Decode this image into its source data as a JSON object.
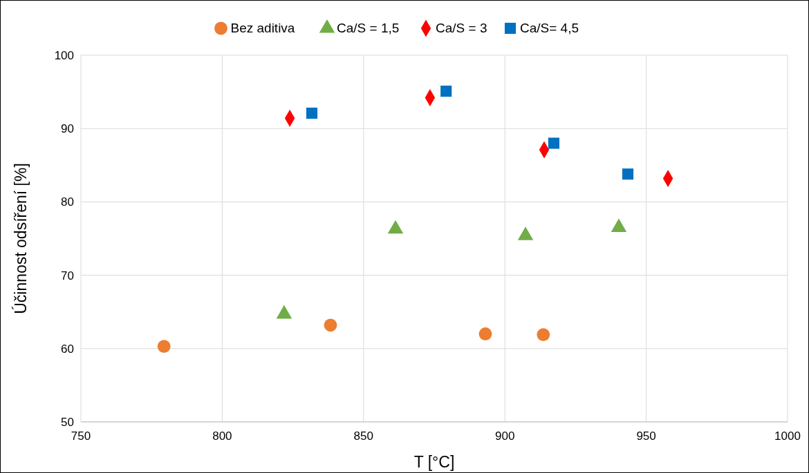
{
  "chart_data": {
    "type": "scatter",
    "xlabel": "T [°C]",
    "ylabel": "Účinnost odsíření [%]",
    "xlim": [
      750,
      1000
    ],
    "xticks": [
      750,
      800,
      850,
      900,
      950,
      1000
    ],
    "ylim": [
      50,
      100
    ],
    "yticks": [
      50,
      60,
      70,
      80,
      90,
      100
    ],
    "grid": true,
    "legend": "top",
    "series": [
      {
        "name": "Bez aditiva",
        "color": "#ed7d31",
        "marker": "circle",
        "x": [
          779.4,
          838.3,
          893.1,
          913.6
        ],
        "values": [
          60.3,
          63.2,
          62.0,
          61.9
        ]
      },
      {
        "name": "Ca/S = 1,5",
        "color": "#70ad47",
        "marker": "triangle",
        "x": [
          821.9,
          861.3,
          907.3,
          940.3
        ],
        "values": [
          64.7,
          76.3,
          75.4,
          76.5
        ]
      },
      {
        "name": "Ca/S = 3",
        "color": "#ff0000",
        "marker": "diamond",
        "x": [
          823.9,
          873.5,
          913.9,
          957.7
        ],
        "values": [
          91.4,
          94.2,
          87.1,
          83.2
        ]
      },
      {
        "name": "Ca/S= 4,5",
        "color": "#0070c0",
        "marker": "square",
        "x": [
          831.7,
          879.2,
          917.3,
          943.5
        ],
        "values": [
          92.1,
          95.1,
          88.0,
          83.8
        ]
      }
    ]
  }
}
